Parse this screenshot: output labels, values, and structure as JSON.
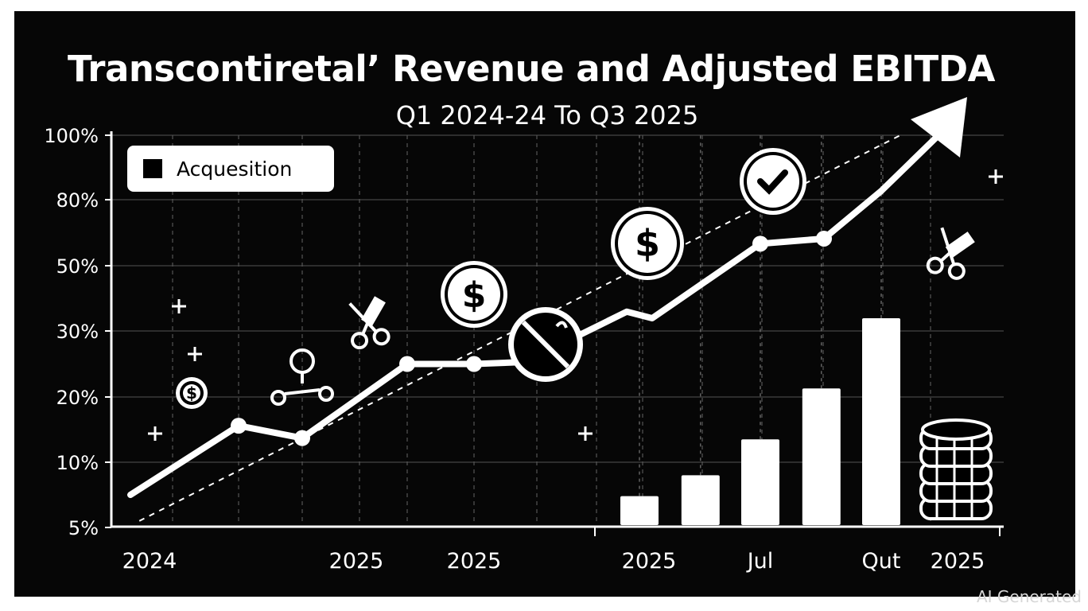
{
  "chart_data": {
    "type": "bar+line",
    "title": "Transcontiretal’ Revenue and Adjusted EBITDA",
    "subtitle": "Q1 2024-24 To Q3 2025",
    "legend": {
      "entries": [
        "Acquesition"
      ],
      "placement": "top-left"
    },
    "y_ticks": [
      "5%",
      "10%",
      "20%",
      "30%",
      "50%",
      "80%",
      "100%"
    ],
    "y_tick_values": [
      5,
      10,
      20,
      30,
      50,
      80,
      100
    ],
    "x_domain": [
      0,
      14
    ],
    "x_tick_labels": [
      {
        "label": "2024",
        "x": 0.6
      },
      {
        "label": "2025",
        "x": 3.85
      },
      {
        "label": "2025",
        "x": 5.7
      },
      {
        "label": "2025",
        "x": 8.45
      },
      {
        "label": "Jul",
        "x": 10.2
      },
      {
        "label": "Qut",
        "x": 12.1
      },
      {
        "label": "2025",
        "x": 13.3
      }
    ],
    "grid": true,
    "line_series": {
      "name": "Revenue",
      "points": [
        [
          0.3,
          7.5
        ],
        [
          2.0,
          15.6
        ],
        [
          3.0,
          13.7
        ],
        [
          4.65,
          25
        ],
        [
          5.7,
          25
        ],
        [
          6.5,
          25.3
        ],
        [
          8.1,
          35.9
        ],
        [
          8.5,
          33.9
        ],
        [
          10.2,
          60
        ],
        [
          11.2,
          62.3
        ],
        [
          12.1,
          82.7
        ]
      ]
    },
    "trend_line": {
      "style": "dashed",
      "points": [
        [
          0.44,
          5.5
        ],
        [
          12.4,
          100
        ]
      ]
    },
    "bar_series": {
      "name": "Adjusted EBITDA",
      "x": [
        8.3,
        9.26,
        10.2,
        11.16,
        12.1
      ],
      "values": [
        7.4,
        9.0,
        13.5,
        21.3,
        33.9
      ]
    }
  },
  "watermark": "AI Generated"
}
